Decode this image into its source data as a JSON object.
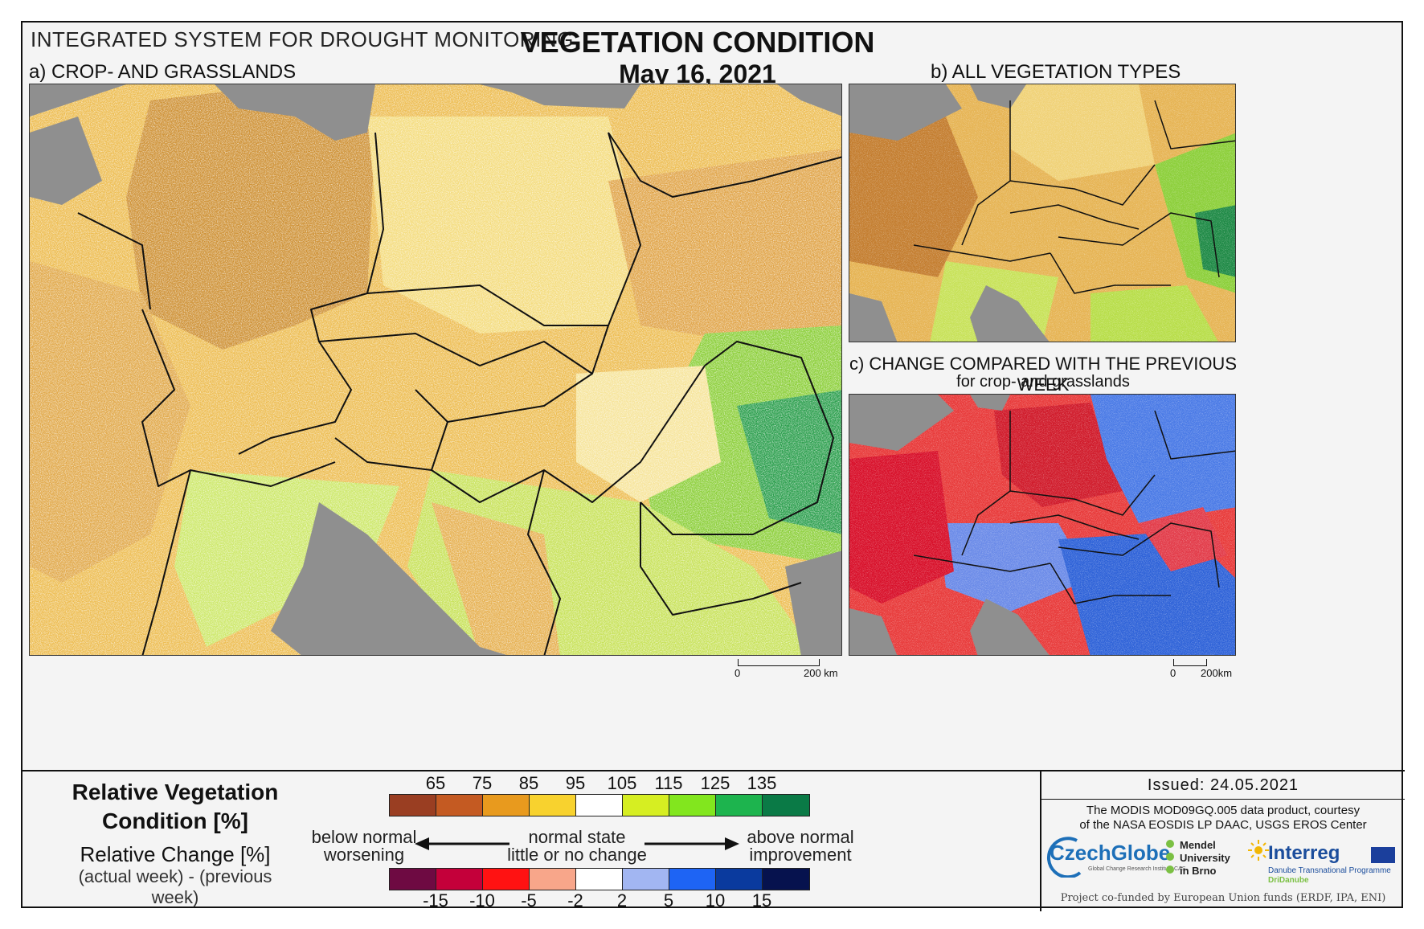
{
  "header": {
    "system_title": "INTEGRATED SYSTEM FOR DROUGHT MONITORING",
    "main_title": "VEGETATION CONDITION",
    "date": "May 16, 2021"
  },
  "panels": {
    "a": {
      "label": "a) CROP- AND GRASSLANDS",
      "scale_zero": "0",
      "scale_end": "200 km"
    },
    "b": {
      "label": "b) ALL VEGETATION TYPES"
    },
    "c": {
      "label": "c) CHANGE COMPARED WITH THE PREVIOUS WEEK",
      "sublabel": "for crop- and grasslands",
      "scale_zero": "0",
      "scale_end": "200km"
    }
  },
  "legend": {
    "rvc_title_line1": "Relative Vegetation",
    "rvc_title_line2": "Condition [%]",
    "rc_title": "Relative Change [%]",
    "rc_formula": "(actual week) - (previous week)",
    "top_ticks": [
      "65",
      "75",
      "85",
      "95",
      "105",
      "115",
      "125",
      "135"
    ],
    "top_colors": [
      "#9a3e22",
      "#c45a22",
      "#e89a1e",
      "#f8d22e",
      "#ffffff",
      "#d6ee22",
      "#82e61e",
      "#1db44e",
      "#0a7a46"
    ],
    "bottom_ticks": [
      "-15",
      "-10",
      "-5",
      "-2",
      "2",
      "5",
      "10",
      "15"
    ],
    "bottom_colors": [
      "#6e0a42",
      "#c4003a",
      "#ff1212",
      "#f8a68a",
      "#ffffff",
      "#a2b6f2",
      "#1e64f4",
      "#0a3a9e",
      "#06124e"
    ],
    "left_top": "below normal",
    "left_bottom": "worsening",
    "center_top": "normal state",
    "center_bottom": "little or no change",
    "right_top": "above normal",
    "right_bottom": "improvement"
  },
  "info": {
    "issued": "Issued: 24.05.2021",
    "courtesy_line1": "The MODIS MOD09GQ.005 data product, courtesy",
    "courtesy_line2": "of the NASA EOSDIS LP DAAC, USGS EROS Center",
    "logo_czechglobe": "CzechGlobe",
    "logo_czechglobe_sub": "Global Change Research Institute CAS",
    "logo_mendel_1": "Mendel",
    "logo_mendel_2": "University",
    "logo_mendel_3": "in Brno",
    "logo_interreg": "Interreg",
    "logo_interreg_sub1": "Danube Transnational Programme",
    "logo_interreg_sub2": "DriDanube",
    "cofund": "Project co-funded by European Union funds (ERDF, IPA, ENI)"
  },
  "colors": {
    "sea": "#8f8f8f",
    "border_line": "#111111"
  }
}
